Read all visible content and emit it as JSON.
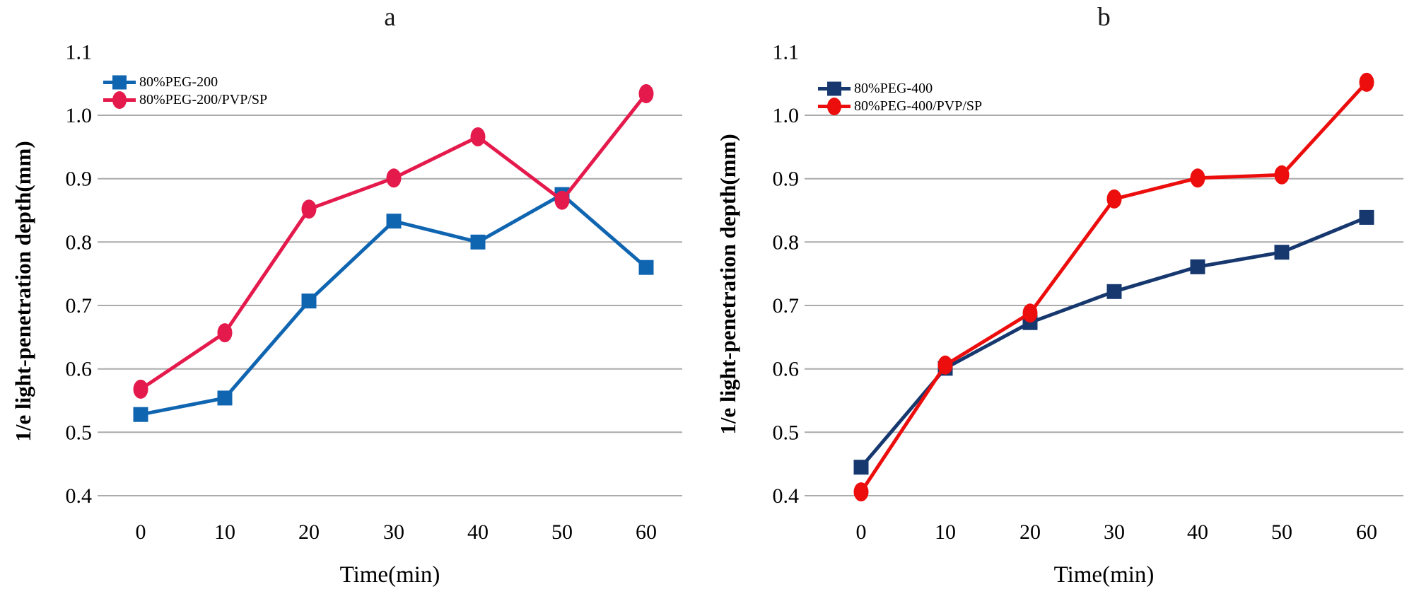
{
  "styles": {
    "background": "#FFFFFF",
    "grid_color": "#ABABAB",
    "text_color": "#000000"
  },
  "chart_data": [
    {
      "type": "line",
      "title": "a",
      "xlabel": "Time(min)",
      "ylabel": "1/e light-penetration depth(mm)",
      "x": [
        0,
        10,
        20,
        30,
        40,
        50,
        60
      ],
      "x_tick_labels": [
        "0",
        "10",
        "20",
        "30",
        "40",
        "50",
        "60"
      ],
      "y_ticks": [
        1.1,
        1.0,
        0.9,
        0.8,
        0.7,
        0.6,
        0.5,
        0.4
      ],
      "y_tick_labels": [
        "1.1",
        "1.0",
        "0.9",
        "0.8",
        "0.7",
        "0.6",
        "0.5",
        "0.4"
      ],
      "y_gridlines": [
        1.0,
        0.9,
        0.8,
        0.7,
        0.6,
        0.5,
        0.4
      ],
      "ylim": [
        0.4,
        1.1
      ],
      "grid": "horizontal",
      "legend_position": "top-left-inside",
      "series": [
        {
          "name": "80%PEG-200",
          "marker": "square",
          "color": "#1065B1",
          "values": [
            0.528,
            0.554,
            0.707,
            0.833,
            0.8,
            0.875,
            0.76
          ]
        },
        {
          "name": "80%PEG-200/PVP/SP",
          "marker": "circle",
          "color": "#E51A4C",
          "values": [
            0.568,
            0.657,
            0.852,
            0.901,
            0.966,
            0.866,
            1.034
          ]
        }
      ]
    },
    {
      "type": "line",
      "title": "b",
      "xlabel": "Time(min)",
      "ylabel": "1/e light-penetration depth(mm)",
      "x": [
        0,
        10,
        20,
        30,
        40,
        50,
        60
      ],
      "x_tick_labels": [
        "0",
        "10",
        "20",
        "30",
        "40",
        "50",
        "60"
      ],
      "y_ticks": [
        1.1,
        1.0,
        0.9,
        0.8,
        0.7,
        0.6,
        0.5,
        0.4
      ],
      "y_tick_labels": [
        "1.1",
        "1.0",
        "0.9",
        "0.8",
        "0.7",
        "0.6",
        "0.5",
        "0.4"
      ],
      "y_gridlines": [
        1.0,
        0.9,
        0.8,
        0.7,
        0.6,
        0.5,
        0.4
      ],
      "ylim": [
        0.4,
        1.1
      ],
      "grid": "horizontal",
      "legend_position": "top-left-inside",
      "series": [
        {
          "name": "80%PEG-400",
          "marker": "square",
          "color": "#16386F",
          "values": [
            0.445,
            0.601,
            0.673,
            0.722,
            0.761,
            0.784,
            0.839
          ]
        },
        {
          "name": "80%PEG-400/PVP/SP",
          "marker": "circle",
          "color": "#EC0D0D",
          "values": [
            0.406,
            0.606,
            0.688,
            0.868,
            0.901,
            0.906,
            1.052
          ]
        }
      ]
    }
  ]
}
